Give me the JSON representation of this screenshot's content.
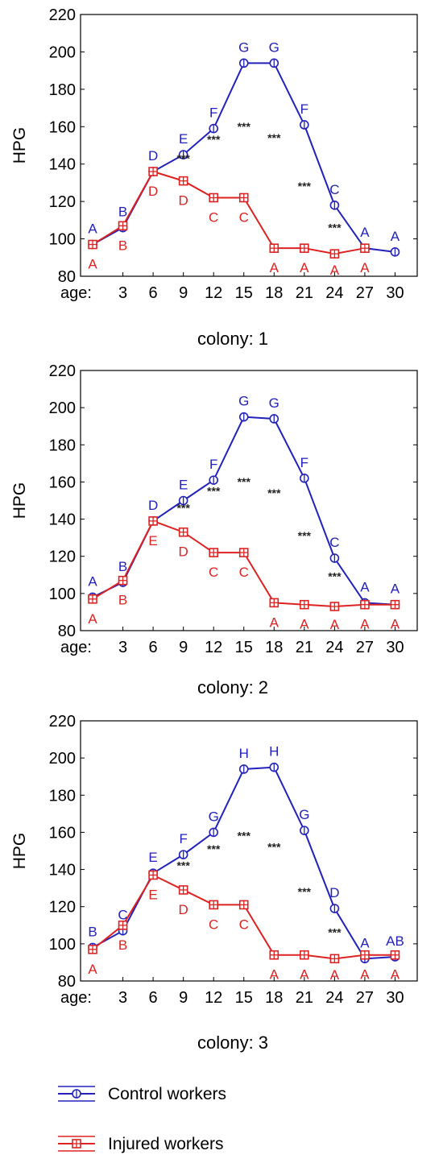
{
  "chart_data": [
    {
      "type": "line",
      "ylabel": "HPG",
      "xprefix": "age:",
      "caption": "colony: 1",
      "ylim": [
        80,
        220
      ],
      "yticks": [
        80,
        100,
        120,
        140,
        160,
        180,
        200,
        220
      ],
      "x": [
        0,
        3,
        6,
        9,
        12,
        15,
        18,
        21,
        24,
        27,
        30
      ],
      "xticks": [
        "3",
        "6",
        "9",
        "12",
        "15",
        "18",
        "21",
        "24",
        "27",
        "30"
      ],
      "series": [
        {
          "key": "control",
          "color": "#2222bb",
          "marker": "circle",
          "values": [
            97,
            106,
            136,
            145,
            159,
            194,
            194,
            161,
            118,
            95,
            93
          ],
          "letters": [
            "A",
            "B",
            "D",
            "E",
            "F",
            "G",
            "G",
            "F",
            "C",
            "A",
            "A"
          ]
        },
        {
          "key": "injured",
          "color": "#dd2222",
          "marker": "square",
          "values": [
            97,
            107,
            136,
            131,
            122,
            122,
            95,
            95,
            92,
            95,
            null
          ],
          "letters": [
            "A",
            "B",
            "D",
            "D",
            "C",
            "C",
            "A",
            "A",
            "A",
            "A",
            ""
          ]
        }
      ],
      "significance": [
        {
          "x": 9,
          "y": 141,
          "text": "***"
        },
        {
          "x": 12,
          "y": 151,
          "text": "***"
        },
        {
          "x": 15,
          "y": 158,
          "text": "***"
        },
        {
          "x": 18,
          "y": 152,
          "text": "***"
        },
        {
          "x": 21,
          "y": 126,
          "text": "***"
        },
        {
          "x": 24,
          "y": 104,
          "text": "***"
        }
      ]
    },
    {
      "type": "line",
      "ylabel": "HPG",
      "xprefix": "age:",
      "caption": "colony: 2",
      "ylim": [
        80,
        220
      ],
      "yticks": [
        80,
        100,
        120,
        140,
        160,
        180,
        200,
        220
      ],
      "x": [
        0,
        3,
        6,
        9,
        12,
        15,
        18,
        21,
        24,
        27,
        30
      ],
      "xticks": [
        "3",
        "6",
        "9",
        "12",
        "15",
        "18",
        "21",
        "24",
        "27",
        "30"
      ],
      "series": [
        {
          "key": "control",
          "color": "#2222bb",
          "marker": "circle",
          "values": [
            98,
            106,
            139,
            150,
            161,
            195,
            194,
            162,
            119,
            95,
            94
          ],
          "letters": [
            "A",
            "B",
            "D",
            "E",
            "F",
            "G",
            "G",
            "F",
            "C",
            "A",
            "A"
          ]
        },
        {
          "key": "injured",
          "color": "#dd2222",
          "marker": "square",
          "values": [
            97,
            107,
            139,
            133,
            122,
            122,
            95,
            94,
            93,
            94,
            94
          ],
          "letters": [
            "A",
            "B",
            "E",
            "D",
            "C",
            "C",
            "A",
            "A",
            "A",
            "A",
            "A"
          ]
        }
      ],
      "significance": [
        {
          "x": 9,
          "y": 144,
          "text": "***"
        },
        {
          "x": 12,
          "y": 153,
          "text": "***"
        },
        {
          "x": 15,
          "y": 158,
          "text": "***"
        },
        {
          "x": 18,
          "y": 152,
          "text": "***"
        },
        {
          "x": 21,
          "y": 129,
          "text": "***"
        },
        {
          "x": 24,
          "y": 107,
          "text": "***"
        }
      ]
    },
    {
      "type": "line",
      "ylabel": "HPG",
      "xprefix": "age:",
      "caption": "colony: 3",
      "ylim": [
        80,
        220
      ],
      "yticks": [
        80,
        100,
        120,
        140,
        160,
        180,
        200,
        220
      ],
      "x": [
        0,
        3,
        6,
        9,
        12,
        15,
        18,
        21,
        24,
        27,
        30
      ],
      "xticks": [
        "3",
        "6",
        "9",
        "12",
        "15",
        "18",
        "21",
        "24",
        "27",
        "30"
      ],
      "series": [
        {
          "key": "control",
          "color": "#2222bb",
          "marker": "circle",
          "values": [
            98,
            107,
            138,
            148,
            160,
            194,
            195,
            161,
            119,
            92,
            93
          ],
          "letters": [
            "B",
            "C",
            "E",
            "F",
            "G",
            "H",
            "H",
            "G",
            "D",
            "A",
            "AB"
          ]
        },
        {
          "key": "injured",
          "color": "#dd2222",
          "marker": "square",
          "values": [
            97,
            110,
            137,
            129,
            121,
            121,
            94,
            94,
            92,
            94,
            94
          ],
          "letters": [
            "A",
            "B",
            "E",
            "D",
            "C",
            "C",
            "A",
            "A",
            "A",
            "A",
            "A"
          ]
        }
      ],
      "significance": [
        {
          "x": 9,
          "y": 140,
          "text": "***"
        },
        {
          "x": 12,
          "y": 149,
          "text": "***"
        },
        {
          "x": 15,
          "y": 156,
          "text": "***"
        },
        {
          "x": 18,
          "y": 150,
          "text": "***"
        },
        {
          "x": 21,
          "y": 126,
          "text": "***"
        },
        {
          "x": 24,
          "y": 104,
          "text": "***"
        }
      ]
    }
  ],
  "legend": {
    "position": "bottom-left",
    "items": [
      {
        "label": "Control workers",
        "color": "#2222bb",
        "marker": "circle"
      },
      {
        "label": "Injured workers",
        "color": "#dd2222",
        "marker": "square"
      }
    ]
  }
}
